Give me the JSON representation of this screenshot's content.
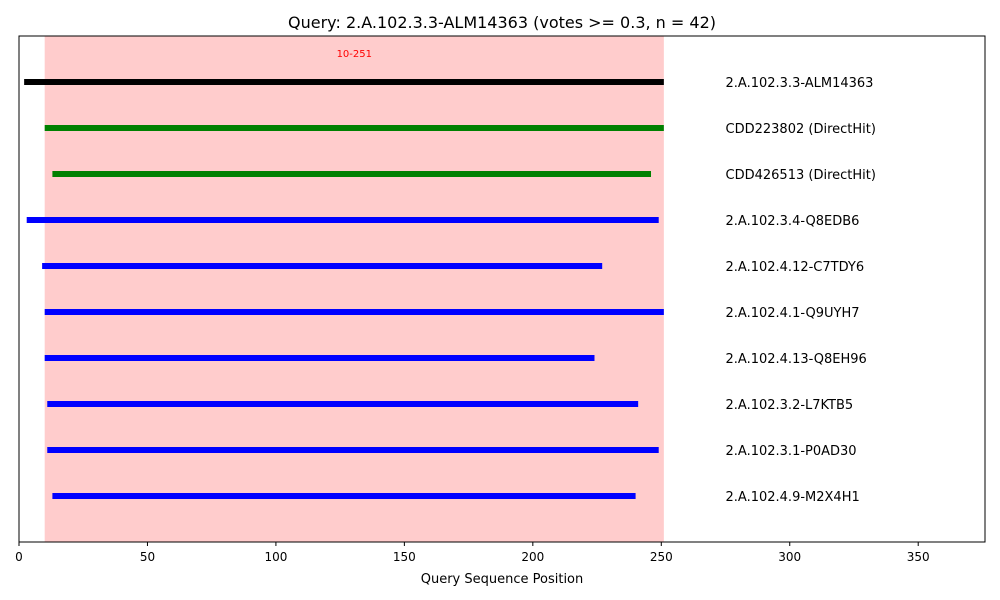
{
  "chart_data": {
    "type": "bar",
    "title": "Query: 2.A.102.3.3-ALM14363 (votes >= 0.3, n = 42)",
    "xlabel": "Query Sequence Position",
    "ylabel": "",
    "xlim": [
      0,
      376
    ],
    "xticks": [
      0,
      50,
      100,
      150,
      200,
      250,
      300,
      350
    ],
    "grid": false,
    "region": {
      "start": 10,
      "end": 251,
      "label": "10-251",
      "color": "#ffcccc",
      "label_color": "#ff0000"
    },
    "series": [
      {
        "name": "2.A.102.3.3-ALM14363",
        "start": 2,
        "end": 251,
        "color": "#000000"
      },
      {
        "name": "CDD223802 (DirectHit)",
        "start": 10,
        "end": 251,
        "color": "#008000"
      },
      {
        "name": "CDD426513 (DirectHit)",
        "start": 13,
        "end": 246,
        "color": "#008000"
      },
      {
        "name": "2.A.102.3.4-Q8EDB6",
        "start": 3,
        "end": 249,
        "color": "#0000ff"
      },
      {
        "name": "2.A.102.4.12-C7TDY6",
        "start": 9,
        "end": 227,
        "color": "#0000ff"
      },
      {
        "name": "2.A.102.4.1-Q9UYH7",
        "start": 10,
        "end": 251,
        "color": "#0000ff"
      },
      {
        "name": "2.A.102.4.13-Q8EH96",
        "start": 10,
        "end": 224,
        "color": "#0000ff"
      },
      {
        "name": "2.A.102.3.2-L7KTB5",
        "start": 11,
        "end": 241,
        "color": "#0000ff"
      },
      {
        "name": "2.A.102.3.1-P0AD30",
        "start": 11,
        "end": 249,
        "color": "#0000ff"
      },
      {
        "name": "2.A.102.4.9-M2X4H1",
        "start": 13,
        "end": 240,
        "color": "#0000ff"
      }
    ]
  }
}
